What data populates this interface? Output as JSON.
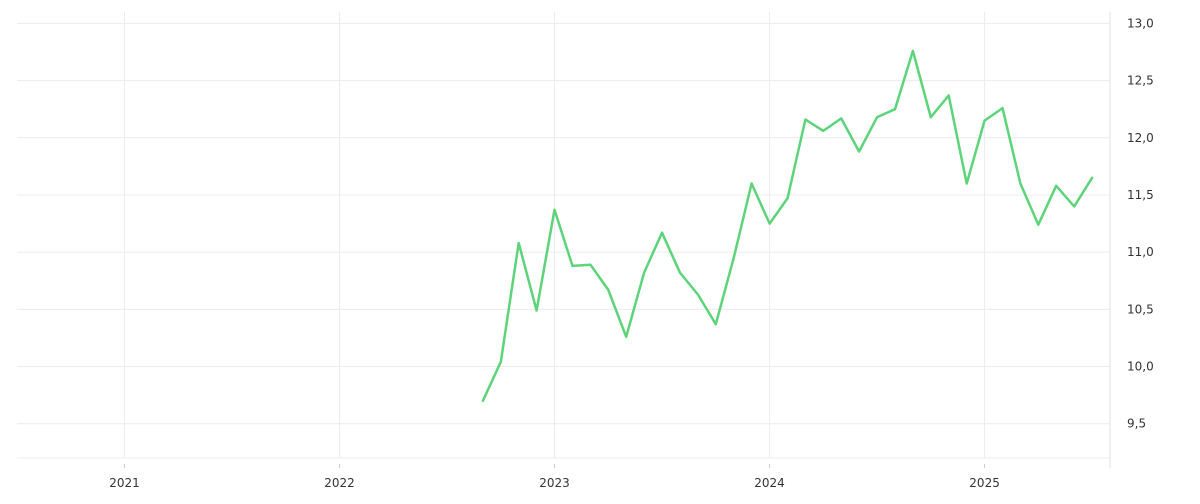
{
  "chart_data": {
    "type": "line",
    "title": "",
    "xlabel": "",
    "ylabel": "",
    "x_ticks": [
      "2021",
      "2022",
      "2023",
      "2024",
      "2025"
    ],
    "y_ticks": [
      "9,5",
      "10,0",
      "10,5",
      "11,0",
      "11,5",
      "12,0",
      "12,5",
      "13,0"
    ],
    "ylim": [
      9.2,
      13.1
    ],
    "xlim": [
      "2020-07",
      "2025-08"
    ],
    "grid": true,
    "legend": "none",
    "series": [
      {
        "color": "#5dd47a",
        "x": [
          "2022-09",
          "2022-10",
          "2022-11",
          "2022-12",
          "2023-01",
          "2023-02",
          "2023-03",
          "2023-04",
          "2023-05",
          "2023-06",
          "2023-07",
          "2023-08",
          "2023-09",
          "2023-10",
          "2023-11",
          "2023-12",
          "2024-01",
          "2024-02",
          "2024-03",
          "2024-04",
          "2024-05",
          "2024-06",
          "2024-07",
          "2024-08",
          "2024-09",
          "2024-10",
          "2024-11",
          "2024-12",
          "2025-01",
          "2025-02",
          "2025-03",
          "2025-04",
          "2025-05",
          "2025-06",
          "2025-07"
        ],
        "values": [
          9.7,
          10.04,
          11.08,
          10.49,
          11.37,
          10.88,
          10.89,
          10.67,
          10.26,
          10.82,
          11.17,
          10.82,
          10.63,
          10.37,
          10.95,
          11.6,
          11.25,
          11.47,
          12.16,
          12.06,
          12.17,
          11.88,
          12.18,
          12.25,
          12.76,
          12.18,
          12.37,
          11.6,
          12.15,
          12.26,
          11.6,
          11.24,
          11.58,
          11.4,
          11.65
        ]
      }
    ]
  }
}
